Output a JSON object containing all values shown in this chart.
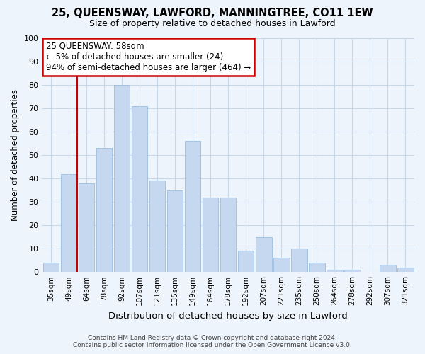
{
  "title1": "25, QUEENSWAY, LAWFORD, MANNINGTREE, CO11 1EW",
  "title2": "Size of property relative to detached houses in Lawford",
  "xlabel": "Distribution of detached houses by size in Lawford",
  "ylabel": "Number of detached properties",
  "categories": [
    "35sqm",
    "49sqm",
    "64sqm",
    "78sqm",
    "92sqm",
    "107sqm",
    "121sqm",
    "135sqm",
    "149sqm",
    "164sqm",
    "178sqm",
    "192sqm",
    "207sqm",
    "221sqm",
    "235sqm",
    "250sqm",
    "264sqm",
    "278sqm",
    "292sqm",
    "307sqm",
    "321sqm"
  ],
  "values": [
    4,
    42,
    38,
    53,
    80,
    71,
    39,
    35,
    56,
    32,
    32,
    9,
    15,
    6,
    10,
    4,
    1,
    1,
    0,
    3,
    2
  ],
  "bar_color": "#c5d8f0",
  "bar_edge_color": "#9bbede",
  "grid_color": "#c8d8e8",
  "background_color": "#eef4fb",
  "vline_pos": 1.5,
  "vline_color": "#cc0000",
  "annotation_text": "25 QUEENSWAY: 58sqm\n← 5% of detached houses are smaller (24)\n94% of semi-detached houses are larger (464) →",
  "annotation_box_facecolor": "#ffffff",
  "annotation_box_edgecolor": "#cc0000",
  "footer1": "Contains HM Land Registry data © Crown copyright and database right 2024.",
  "footer2": "Contains public sector information licensed under the Open Government Licence v3.0.",
  "ylim": [
    0,
    100
  ],
  "yticks": [
    0,
    10,
    20,
    30,
    40,
    50,
    60,
    70,
    80,
    90,
    100
  ]
}
